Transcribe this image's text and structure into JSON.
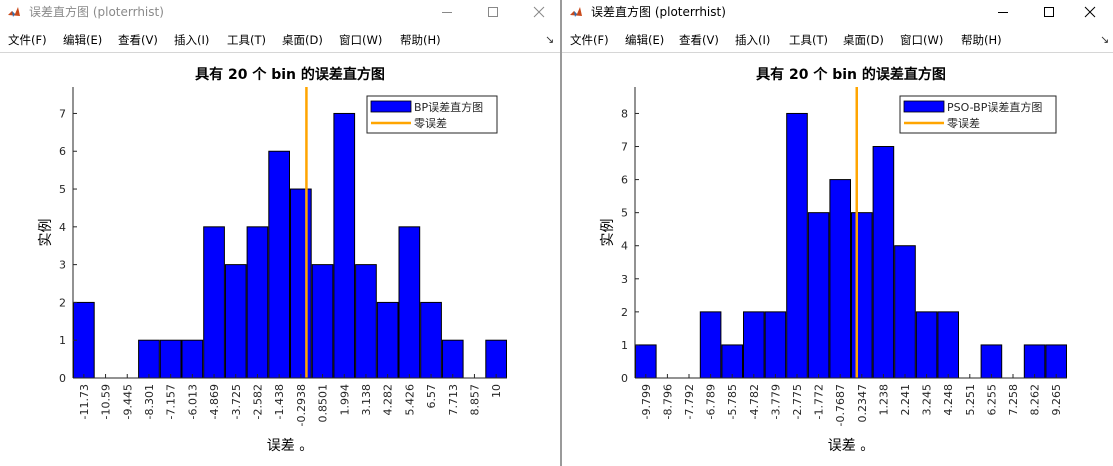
{
  "windows": [
    {
      "title": "误差直方图 (ploterrhist)",
      "menu": [
        "文件(F)",
        "编辑(E)",
        "查看(V)",
        "插入(I)",
        "工具(T)",
        "桌面(D)",
        "窗口(W)",
        "帮助(H)"
      ],
      "menu_arrow": "↘",
      "chart_data": {
        "type": "bar",
        "title": "具有 20 个 bin 的误差直方图",
        "xlabel": "误差 。",
        "ylabel": "实例",
        "categories": [
          "-11.73",
          "-10.59",
          "-9.445",
          "-8.301",
          "-7.157",
          "-6.013",
          "-4.869",
          "-3.725",
          "-2.582",
          "-1.438",
          "-0.2938",
          "0.8501",
          "1.994",
          "3.138",
          "4.282",
          "5.426",
          "6.57",
          "7.713",
          "8.857",
          "10"
        ],
        "series": [
          {
            "name": "BP误差直方图",
            "values": [
              2,
              0,
              0,
              1,
              1,
              1,
              4,
              3,
              4,
              6,
              5,
              3,
              7,
              3,
              2,
              4,
              2,
              1,
              0,
              1
            ]
          }
        ],
        "zero_error_label": "零误差",
        "zero_error_x": 0,
        "ylim": [
          0,
          7.7
        ],
        "yticks": [
          "0",
          "1",
          "2",
          "3",
          "4",
          "5",
          "6",
          "7"
        ],
        "legend_position": "top-right",
        "bar_color": "#0000ff",
        "zero_line_color": "#ffa500",
        "grid": false
      }
    },
    {
      "title": "误差直方图 (ploterrhist)",
      "menu": [
        "文件(F)",
        "编辑(E)",
        "查看(V)",
        "插入(I)",
        "工具(T)",
        "桌面(D)",
        "窗口(W)",
        "帮助(H)"
      ],
      "menu_arrow": "↘",
      "chart_data": {
        "type": "bar",
        "title": "具有 20 个 bin 的误差直方图",
        "xlabel": "误差 。",
        "ylabel": "实例",
        "categories": [
          "-9.799",
          "-8.796",
          "-7.792",
          "-6.789",
          "-5.785",
          "-4.782",
          "-3.779",
          "-2.775",
          "-1.772",
          "-0.7687",
          "0.2347",
          "1.238",
          "2.241",
          "3.245",
          "4.248",
          "5.251",
          "6.255",
          "7.258",
          "8.262",
          "9.265"
        ],
        "series": [
          {
            "name": "PSO-BP误差直方图",
            "values": [
              1,
              0,
              0,
              2,
              1,
              2,
              2,
              8,
              5,
              6,
              5,
              7,
              4,
              2,
              2,
              0,
              1,
              0,
              1,
              1
            ]
          }
        ],
        "zero_error_label": "零误差",
        "zero_error_x": 0,
        "ylim": [
          0,
          8.8
        ],
        "yticks": [
          "0",
          "1",
          "2",
          "3",
          "4",
          "5",
          "6",
          "7",
          "8"
        ],
        "legend_position": "top-right",
        "bar_color": "#0000ff",
        "zero_line_color": "#ffa500",
        "grid": false
      }
    }
  ]
}
